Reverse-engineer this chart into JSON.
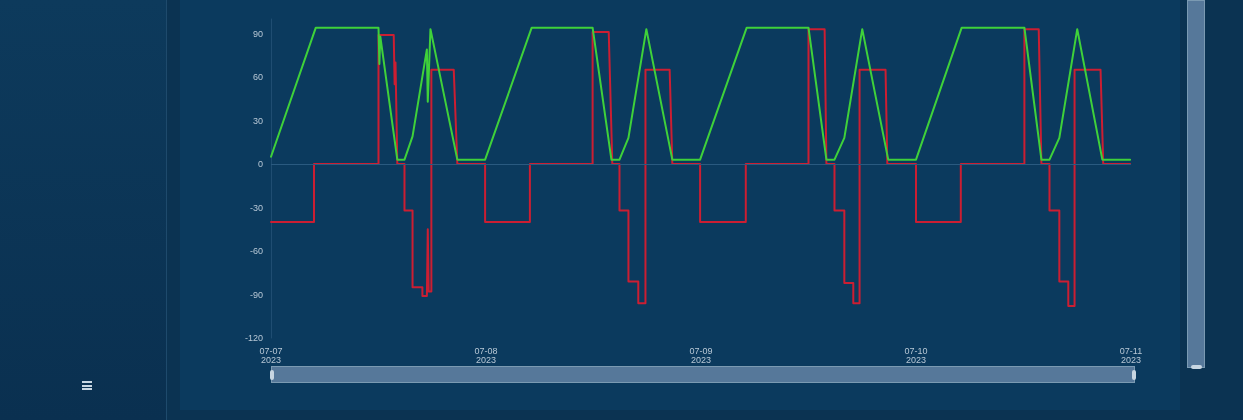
{
  "chart_data": {
    "type": "line",
    "xlim": [
      "2023-07-07",
      "2023-07-11"
    ],
    "xticks": [
      {
        "value": "2023-07-07",
        "label": "07-07\n2023"
      },
      {
        "value": "2023-07-08",
        "label": "07-08\n2023"
      },
      {
        "value": "2023-07-09",
        "label": "07-09\n2023"
      },
      {
        "value": "2023-07-10",
        "label": "07-10\n2023"
      },
      {
        "value": "2023-07-11",
        "label": "07-11\n2023"
      }
    ],
    "ylim": [
      -120,
      100
    ],
    "yticks": [
      -120,
      -90,
      -60,
      -30,
      0,
      30,
      60,
      90
    ],
    "grid": false,
    "marker": "none",
    "line_style": "solid",
    "ref_lines": [
      {
        "axis": "y",
        "value": 0,
        "color": "#2a5a80"
      }
    ],
    "series": [
      {
        "color": "#cc1e32",
        "x": [
          "2023-07-07T00:00",
          "2023-07-07T04:48",
          "2023-07-07T04:48",
          "2023-07-07T12:00",
          "2023-07-07T12:00",
          "2023-07-07T13:42",
          "2023-07-07T13:48",
          "2023-07-07T13:54",
          "2023-07-07T14:06",
          "2023-07-07T14:54",
          "2023-07-07T14:54",
          "2023-07-07T15:48",
          "2023-07-07T15:48",
          "2023-07-07T16:54",
          "2023-07-07T16:54",
          "2023-07-07T17:24",
          "2023-07-07T17:30",
          "2023-07-07T17:36",
          "2023-07-07T17:54",
          "2023-07-07T17:54",
          "2023-07-07T20:24",
          "2023-07-07T20:48",
          "2023-07-07T23:54",
          "2023-07-07T23:54",
          "2023-07-08T04:54",
          "2023-07-08T04:54",
          "2023-07-08T11:54",
          "2023-07-08T11:54",
          "2023-07-08T13:42",
          "2023-07-08T14:06",
          "2023-07-08T14:54",
          "2023-07-08T14:54",
          "2023-07-08T15:54",
          "2023-07-08T15:54",
          "2023-07-08T17:00",
          "2023-07-08T17:00",
          "2023-07-08T17:48",
          "2023-07-08T17:48",
          "2023-07-08T20:30",
          "2023-07-08T20:48",
          "2023-07-08T23:54",
          "2023-07-08T23:54",
          "2023-07-09T05:00",
          "2023-07-09T05:00",
          "2023-07-09T12:00",
          "2023-07-09T12:00",
          "2023-07-09T13:48",
          "2023-07-09T14:00",
          "2023-07-09T14:54",
          "2023-07-09T14:54",
          "2023-07-09T16:00",
          "2023-07-09T16:00",
          "2023-07-09T17:00",
          "2023-07-09T17:00",
          "2023-07-09T17:42",
          "2023-07-09T17:42",
          "2023-07-09T20:36",
          "2023-07-09T20:48",
          "2023-07-10T00:00",
          "2023-07-10T00:00",
          "2023-07-10T05:00",
          "2023-07-10T05:00",
          "2023-07-10T12:06",
          "2023-07-10T12:06",
          "2023-07-10T13:42",
          "2023-07-10T14:00",
          "2023-07-10T14:54",
          "2023-07-10T14:54",
          "2023-07-10T16:00",
          "2023-07-10T16:00",
          "2023-07-10T17:00",
          "2023-07-10T17:00",
          "2023-07-10T17:42",
          "2023-07-10T17:42",
          "2023-07-10T20:36",
          "2023-07-10T20:54",
          "2023-07-10T23:54"
        ],
        "values": [
          -40,
          -40,
          0,
          0,
          89,
          89,
          55,
          70,
          0,
          0,
          -32,
          -32,
          -85,
          -85,
          -91,
          -91,
          -45,
          -88,
          -88,
          65,
          65,
          0,
          0,
          -40,
          -40,
          0,
          0,
          91,
          91,
          0,
          0,
          -32,
          -32,
          -81,
          -81,
          -96,
          -96,
          65,
          65,
          0,
          0,
          -40,
          -40,
          0,
          0,
          93,
          93,
          0,
          0,
          -32,
          -32,
          -82,
          -82,
          -96,
          -96,
          65,
          65,
          0,
          0,
          -40,
          -40,
          0,
          0,
          93,
          93,
          0,
          0,
          -32,
          -32,
          -81,
          -81,
          -98,
          -98,
          65,
          65,
          0,
          0
        ]
      },
      {
        "color": "#3fd13a",
        "x": [
          "2023-07-07T00:00",
          "2023-07-07T05:00",
          "2023-07-07T12:00",
          "2023-07-07T12:06",
          "2023-07-07T12:12",
          "2023-07-07T14:06",
          "2023-07-07T14:54",
          "2023-07-07T15:48",
          "2023-07-07T17:24",
          "2023-07-07T17:30",
          "2023-07-07T17:48",
          "2023-07-07T20:48",
          "2023-07-07T23:54",
          "2023-07-08T05:06",
          "2023-07-08T11:54",
          "2023-07-08T14:00",
          "2023-07-08T14:54",
          "2023-07-08T15:54",
          "2023-07-08T17:54",
          "2023-07-08T20:48",
          "2023-07-08T23:54",
          "2023-07-09T05:06",
          "2023-07-09T12:00",
          "2023-07-09T14:00",
          "2023-07-09T14:54",
          "2023-07-09T16:00",
          "2023-07-09T18:00",
          "2023-07-09T20:54",
          "2023-07-10T00:00",
          "2023-07-10T05:06",
          "2023-07-10T12:06",
          "2023-07-10T14:00",
          "2023-07-10T14:54",
          "2023-07-10T16:00",
          "2023-07-10T18:00",
          "2023-07-10T20:48",
          "2023-07-10T23:54"
        ],
        "values": [
          5,
          94,
          94,
          69,
          88,
          3,
          3,
          19,
          79,
          43,
          93,
          3,
          3,
          94,
          94,
          3,
          3,
          18,
          93,
          3,
          3,
          94,
          94,
          3,
          3,
          18,
          93,
          3,
          3,
          94,
          94,
          3,
          3,
          18,
          93,
          3,
          3
        ]
      }
    ]
  }
}
